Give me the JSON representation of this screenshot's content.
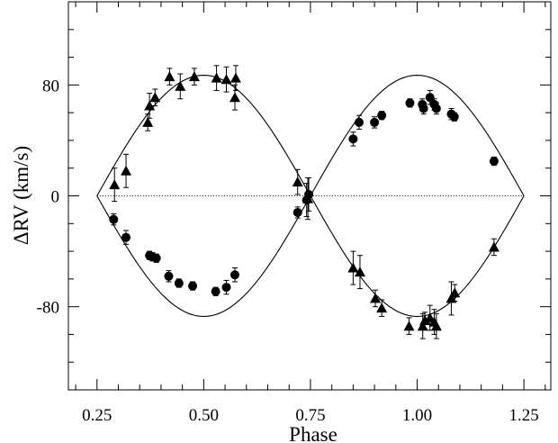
{
  "chart_data": {
    "type": "scatter",
    "xlabel": "Phase",
    "ylabel": "ΔRV (km/s)",
    "xlim": [
      0.183,
      1.313
    ],
    "ylim": [
      -140,
      140
    ],
    "xticks": [
      0.25,
      0.5,
      0.75,
      1.0,
      1.25
    ],
    "xtick_labels": [
      "0.25",
      "0.50",
      "0.75",
      "1.00",
      "1.25"
    ],
    "yticks": [
      -80,
      0,
      80
    ],
    "ytick_labels": [
      "-80",
      "0",
      "80"
    ],
    "zero_line": true,
    "curve_amplitudes": [
      -87,
      87
    ],
    "series": [
      {
        "marker": "circle",
        "points": [
          {
            "x": 0.289,
            "y": -17,
            "err": 4
          },
          {
            "x": 0.318,
            "y": -30,
            "err": 5
          },
          {
            "x": 0.373,
            "y": -43,
            "err": 3
          },
          {
            "x": 0.38,
            "y": -44,
            "err": 3
          },
          {
            "x": 0.389,
            "y": -45,
            "err": 3
          },
          {
            "x": 0.418,
            "y": -58,
            "err": 4
          },
          {
            "x": 0.442,
            "y": -63,
            "err": 3
          },
          {
            "x": 0.474,
            "y": -65,
            "err": 3
          },
          {
            "x": 0.528,
            "y": -69,
            "err": 3
          },
          {
            "x": 0.553,
            "y": -66,
            "err": 5
          },
          {
            "x": 0.573,
            "y": -57,
            "err": 5
          },
          {
            "x": 0.72,
            "y": -12,
            "err": 4
          },
          {
            "x": 0.741,
            "y": -3,
            "err": 12
          },
          {
            "x": 0.746,
            "y": 1,
            "err": 12
          },
          {
            "x": 0.85,
            "y": 41,
            "err": 5
          },
          {
            "x": 0.864,
            "y": 53,
            "err": 5
          },
          {
            "x": 0.9,
            "y": 53,
            "err": 4
          },
          {
            "x": 0.917,
            "y": 58,
            "err": 3
          },
          {
            "x": 0.983,
            "y": 67,
            "err": 3
          },
          {
            "x": 1.012,
            "y": 66,
            "err": 4
          },
          {
            "x": 1.015,
            "y": 63,
            "err": 4
          },
          {
            "x": 1.03,
            "y": 71,
            "err": 5
          },
          {
            "x": 1.04,
            "y": 66,
            "err": 4
          },
          {
            "x": 1.045,
            "y": 63,
            "err": 4
          },
          {
            "x": 1.08,
            "y": 59,
            "err": 4
          },
          {
            "x": 1.087,
            "y": 57,
            "err": 3
          },
          {
            "x": 1.18,
            "y": 25,
            "err": 3
          }
        ]
      },
      {
        "marker": "triangle",
        "points": [
          {
            "x": 0.291,
            "y": 8,
            "err": 12
          },
          {
            "x": 0.318,
            "y": 18,
            "err": 12
          },
          {
            "x": 0.369,
            "y": 53,
            "err": 6
          },
          {
            "x": 0.373,
            "y": 65,
            "err": 9
          },
          {
            "x": 0.386,
            "y": 71,
            "err": 6
          },
          {
            "x": 0.42,
            "y": 86,
            "err": 6
          },
          {
            "x": 0.445,
            "y": 79,
            "err": 9
          },
          {
            "x": 0.478,
            "y": 86,
            "err": 6
          },
          {
            "x": 0.53,
            "y": 85,
            "err": 9
          },
          {
            "x": 0.553,
            "y": 84,
            "err": 9
          },
          {
            "x": 0.573,
            "y": 71,
            "err": 9
          },
          {
            "x": 0.575,
            "y": 85,
            "err": 9
          },
          {
            "x": 0.72,
            "y": 10,
            "err": 9
          },
          {
            "x": 0.744,
            "y": -2,
            "err": 15
          },
          {
            "x": 0.85,
            "y": -52,
            "err": 12
          },
          {
            "x": 0.866,
            "y": -55,
            "err": 12
          },
          {
            "x": 0.902,
            "y": -74,
            "err": 6
          },
          {
            "x": 0.917,
            "y": -81,
            "err": 6
          },
          {
            "x": 0.981,
            "y": -94,
            "err": 6
          },
          {
            "x": 1.013,
            "y": -94,
            "err": 9
          },
          {
            "x": 1.018,
            "y": -90,
            "err": 6
          },
          {
            "x": 1.03,
            "y": -88,
            "err": 9
          },
          {
            "x": 1.04,
            "y": -91,
            "err": 9
          },
          {
            "x": 1.045,
            "y": -94,
            "err": 9
          },
          {
            "x": 1.08,
            "y": -74,
            "err": 12
          },
          {
            "x": 1.088,
            "y": -70,
            "err": 6
          },
          {
            "x": 1.18,
            "y": -37,
            "err": 6
          }
        ]
      }
    ]
  }
}
